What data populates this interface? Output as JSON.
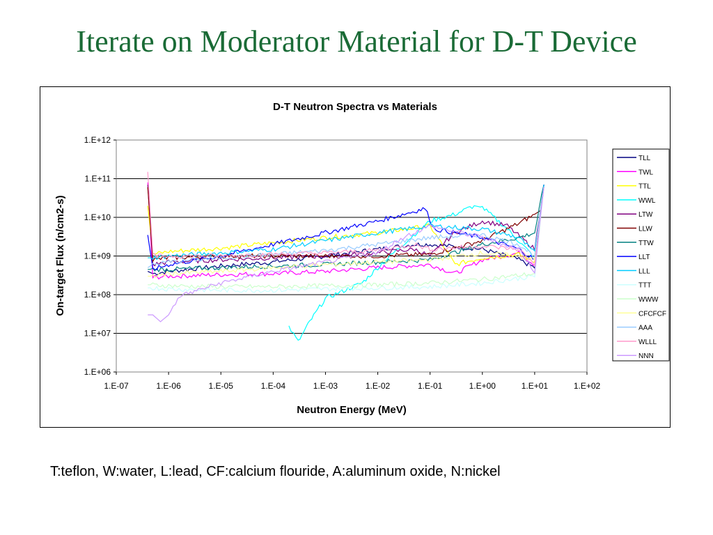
{
  "slide": {
    "title": "Iterate on Moderator Material for D-T Device",
    "caption": "T:teflon, W:water, L:lead, CF:calcium flouride, A:aluminum oxide, N:nickel"
  },
  "chart_data": {
    "type": "line",
    "title": "D-T Neutron Spectra vs Materials",
    "xlabel": "Neutron Energy (MeV)",
    "ylabel": "On-target Flux (n/cm2-s)",
    "x_scale": "log",
    "y_scale": "log",
    "xlim": [
      1e-07,
      100
    ],
    "ylim": [
      1000000.0,
      1000000000000.0
    ],
    "x_ticks": [
      "1.E-07",
      "1.E-06",
      "1.E-05",
      "1.E-04",
      "1.E-03",
      "1.E-02",
      "1.E-01",
      "1.E+00",
      "1.E+01",
      "1.E+02"
    ],
    "y_ticks": [
      "1.E+06",
      "1.E+07",
      "1.E+08",
      "1.E+09",
      "1.E+10",
      "1.E+11",
      "1.E+12"
    ],
    "grid": "horizontal major",
    "legend_position": "right",
    "series": [
      {
        "name": "TLL",
        "color": "#000080",
        "x": [
          4e-07,
          5e-07,
          1e-06,
          1e-05,
          0.0001,
          0.001,
          0.01,
          0.05,
          0.1,
          1.0,
          5.0,
          10.0,
          15.0
        ],
        "y": [
          400000000.0,
          350000000.0,
          400000000.0,
          550000000.0,
          700000000.0,
          1000000000.0,
          1500000000.0,
          2000000000.0,
          2000000000.0,
          1500000000.0,
          800000000.0,
          500000000.0,
          70000000000.0
        ]
      },
      {
        "name": "TWL",
        "color": "#ff00ff",
        "x": [
          4e-07,
          5e-07,
          1e-06,
          1e-05,
          0.0001,
          0.001,
          0.01,
          0.1,
          0.3,
          1.0,
          5.0,
          10.0,
          15.0
        ],
        "y": [
          80000000000.0,
          280000000.0,
          300000000.0,
          330000000.0,
          350000000.0,
          400000000.0,
          500000000.0,
          600000000.0,
          350000000.0,
          800000000.0,
          1200000000.0,
          600000000.0,
          70000000000.0
        ]
      },
      {
        "name": "TTL",
        "color": "#ffff00",
        "x": [
          4e-07,
          5e-07,
          1e-06,
          1e-05,
          0.0001,
          0.001,
          0.01,
          0.1,
          0.3,
          1.0,
          5.0,
          10.0,
          15.0
        ],
        "y": [
          20000000000.0,
          1100000000.0,
          1300000000.0,
          1600000000.0,
          2200000000.0,
          3000000000.0,
          4000000000.0,
          6000000000.0,
          600000000.0,
          900000000.0,
          1100000000.0,
          700000000.0,
          60000000000.0
        ]
      },
      {
        "name": "WWL",
        "color": "#00ffff",
        "x": [
          0.0002,
          0.0003,
          0.0005,
          0.001,
          0.005,
          0.01,
          0.03,
          0.1,
          0.3,
          0.7,
          1.0,
          3.0,
          10.0,
          15.0
        ],
        "y": [
          15000000.0,
          6000000.0,
          20000000.0,
          80000000.0,
          200000000.0,
          500000000.0,
          2000000000.0,
          8000000000.0,
          12000000000.0,
          20000000000.0,
          18000000000.0,
          5000000000.0,
          900000000.0,
          60000000000.0
        ]
      },
      {
        "name": "LTW",
        "color": "#800080",
        "x": [
          4e-07,
          5e-07,
          1e-06,
          1e-05,
          0.0001,
          0.001,
          0.01,
          0.05,
          0.1,
          0.3,
          1.0,
          3.0,
          10.0,
          15.0
        ],
        "y": [
          70000000000.0,
          600000000.0,
          700000000.0,
          800000000.0,
          900000000.0,
          1000000000.0,
          1200000000.0,
          1500000000.0,
          1000000000.0,
          4000000000.0,
          8000000000.0,
          6000000000.0,
          1500000000.0,
          70000000000.0
        ]
      },
      {
        "name": "LLW",
        "color": "#800000",
        "x": [
          4e-07,
          5e-07,
          1e-06,
          1e-05,
          0.0001,
          0.001,
          0.01,
          0.1,
          1.0,
          5.0,
          10.0,
          13.0,
          15.0
        ],
        "y": [
          60000000000.0,
          800000000.0,
          900000000.0,
          1000000000.0,
          1000000000.0,
          1000000000.0,
          1000000000.0,
          1100000000.0,
          2500000000.0,
          7000000000.0,
          12000000000.0,
          15000000000.0,
          70000000000.0
        ]
      },
      {
        "name": "TTW",
        "color": "#008080",
        "x": [
          4e-07,
          5e-07,
          1e-06,
          1e-05,
          0.0001,
          0.001,
          0.01,
          0.1,
          1.0,
          5.0,
          10.0,
          15.0
        ],
        "y": [
          450000000.0,
          450000000.0,
          450000000.0,
          500000000.0,
          550000000.0,
          600000000.0,
          700000000.0,
          800000000.0,
          2000000000.0,
          3000000000.0,
          4000000000.0,
          70000000000.0
        ]
      },
      {
        "name": "LLT",
        "color": "#0000ff",
        "x": [
          4e-07,
          5e-07,
          1e-06,
          1e-05,
          0.0001,
          0.001,
          0.01,
          0.08,
          0.12,
          1.0,
          5.0,
          10.0,
          15.0
        ],
        "y": [
          3500000000.0,
          450000000.0,
          600000000.0,
          1000000000.0,
          2000000000.0,
          4000000000.0,
          8000000000.0,
          17000000000.0,
          5000000000.0,
          3000000000.0,
          1500000000.0,
          800000000.0,
          70000000000.0
        ]
      },
      {
        "name": "LLL",
        "color": "#00ccff",
        "x": [
          4e-07,
          5e-07,
          1e-06,
          1e-05,
          0.0001,
          0.001,
          0.01,
          0.1,
          1.0,
          5.0,
          10.0,
          15.0
        ],
        "y": [
          900000000.0,
          900000000.0,
          1000000000.0,
          1200000000.0,
          1500000000.0,
          2500000000.0,
          4000000000.0,
          6000000000.0,
          5000000000.0,
          3000000000.0,
          1200000000.0,
          70000000000.0
        ]
      },
      {
        "name": "TTT",
        "color": "#ccffff",
        "x": [
          4e-07,
          5e-07,
          1e-06,
          1e-05,
          0.0001,
          0.001,
          0.01,
          0.1,
          1.0,
          10.0,
          15.0
        ],
        "y": [
          150000000.0,
          150000000.0,
          140000000.0,
          130000000.0,
          130000000.0,
          140000000.0,
          150000000.0,
          160000000.0,
          200000000.0,
          300000000.0,
          60000000000.0
        ]
      },
      {
        "name": "WWW",
        "color": "#ccffcc",
        "x": [
          4e-07,
          5e-07,
          1e-06,
          1e-05,
          0.0001,
          0.001,
          0.01,
          0.1,
          1.0,
          10.0,
          15.0
        ],
        "y": [
          180000000.0,
          180000000.0,
          170000000.0,
          160000000.0,
          160000000.0,
          170000000.0,
          180000000.0,
          200000000.0,
          250000000.0,
          350000000.0,
          60000000000.0
        ]
      },
      {
        "name": "CFCFCF",
        "color": "#ffff99",
        "x": [
          4e-07,
          5e-07,
          1e-06,
          1e-05,
          0.0001,
          0.001,
          0.01,
          0.1,
          1.0,
          10.0,
          15.0
        ],
        "y": [
          300000000.0,
          300000000.0,
          350000000.0,
          400000000.0,
          500000000.0,
          600000000.0,
          700000000.0,
          800000000.0,
          1200000000.0,
          900000000.0,
          60000000000.0
        ]
      },
      {
        "name": "AAA",
        "color": "#99ccff",
        "x": [
          4e-07,
          5e-07,
          1e-06,
          1e-05,
          0.0001,
          0.001,
          0.01,
          0.1,
          1.0,
          5.0,
          10.0,
          15.0
        ],
        "y": [
          500000000.0,
          600000000.0,
          700000000.0,
          900000000.0,
          1100000000.0,
          1400000000.0,
          2000000000.0,
          3000000000.0,
          3500000000.0,
          2000000000.0,
          1000000000.0,
          60000000000.0
        ]
      },
      {
        "name": "WLLL",
        "color": "#ff99cc",
        "x": [
          4e-07,
          5e-07,
          1e-06,
          1e-05,
          0.0001,
          0.001,
          0.01,
          0.05,
          0.1,
          1.0,
          5.0,
          10.0,
          15.0
        ],
        "y": [
          150000000000.0,
          1000000000.0,
          1000000000.0,
          1000000000.0,
          1100000000.0,
          1200000000.0,
          1400000000.0,
          2000000000.0,
          1500000000.0,
          1800000000.0,
          1500000000.0,
          600000000.0,
          60000000000.0
        ]
      },
      {
        "name": "NNN",
        "color": "#cc99ff",
        "x": [
          4e-07,
          5e-07,
          7e-07,
          1e-06,
          1.5e-06,
          2e-06,
          1e-05,
          0.0001,
          0.001,
          0.01,
          0.03,
          0.1,
          1.0,
          5.0,
          10.0,
          15.0
        ],
        "y": [
          30000000.0,
          30000000.0,
          20000000.0,
          30000000.0,
          80000000.0,
          100000000.0,
          200000000.0,
          400000000.0,
          700000000.0,
          1200000000.0,
          3000000000.0,
          6000000000.0,
          3000000000.0,
          1500000000.0,
          400000000.0,
          60000000000.0
        ]
      }
    ]
  }
}
